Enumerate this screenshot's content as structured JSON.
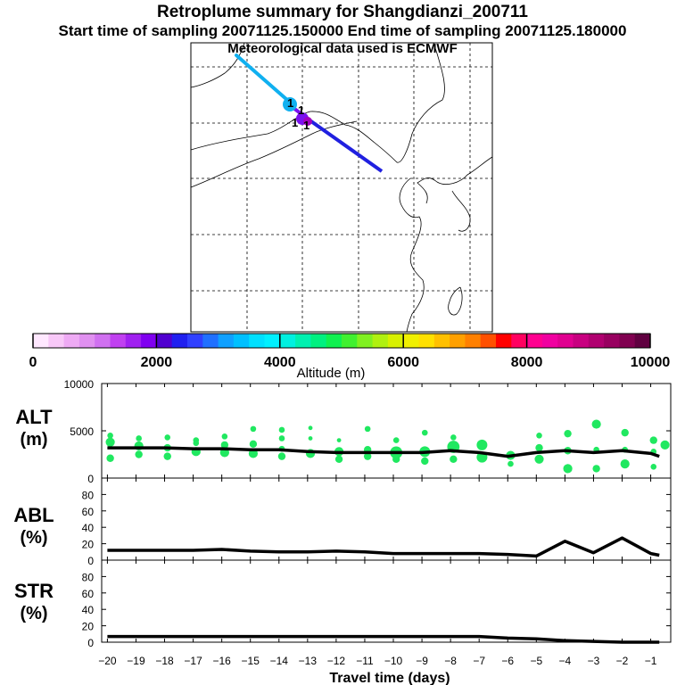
{
  "header": {
    "title": "Retroplume summary for Shangdianzi_200711",
    "subtitle": "Start time of sampling 20071125.150000     End time of sampling 20071125.180000",
    "met": "Meteorological data used is ECMWF"
  },
  "map": {
    "markers": [
      "1",
      "1",
      "1",
      "1"
    ]
  },
  "colorbar": {
    "ticks": [
      "0",
      "2000",
      "4000",
      "6000",
      "8000",
      "10000"
    ],
    "label": "Altitude (m)",
    "colors": [
      "#ffe8ff",
      "#f8c8f8",
      "#eeaaf4",
      "#e090f0",
      "#d070f0",
      "#c040f0",
      "#a020f0",
      "#8000f0",
      "#5000d0",
      "#2020f0",
      "#3040ff",
      "#2070ff",
      "#10a0ff",
      "#00c0ff",
      "#00e0ff",
      "#00f0ff",
      "#00f0e0",
      "#00f0b0",
      "#00f080",
      "#10f050",
      "#40f030",
      "#80f020",
      "#b0f010",
      "#d8f000",
      "#f0f000",
      "#ffe000",
      "#ffc000",
      "#ffa000",
      "#ff8000",
      "#ff5000",
      "#ff0000",
      "#ff0060",
      "#ff0090",
      "#f000a0",
      "#e00090",
      "#c80080",
      "#b00070",
      "#980060",
      "#800050",
      "#600040"
    ],
    "range": [
      0,
      10000
    ]
  },
  "chart_data": [
    {
      "type": "line",
      "name": "ALT",
      "ylabel": "ALT (m)",
      "ylim": [
        0,
        10000
      ],
      "yticks": [
        "0",
        "5000",
        "10000"
      ],
      "ytick_values": [
        0,
        5000,
        10000
      ],
      "x": [
        -20,
        -19,
        -18,
        -17,
        -16,
        -15,
        -14,
        -13,
        -12,
        -11,
        -10,
        -9,
        -8,
        -7,
        -6,
        -5,
        -4,
        -3,
        -2,
        -1,
        -0.7
      ],
      "values": [
        3200,
        3200,
        3200,
        3100,
        3100,
        3000,
        3000,
        2800,
        2700,
        2700,
        2700,
        2700,
        2900,
        2700,
        2300,
        2700,
        2900,
        2700,
        2900,
        2600,
        2300
      ],
      "spread_points": [
        {
          "x": -19.9,
          "y": 3800,
          "s": 4
        },
        {
          "x": -19.9,
          "y": 2100,
          "s": 3
        },
        {
          "x": -19.9,
          "y": 4500,
          "s": 2
        },
        {
          "x": -18.9,
          "y": 3400,
          "s": 4
        },
        {
          "x": -18.9,
          "y": 2500,
          "s": 3
        },
        {
          "x": -18.9,
          "y": 4200,
          "s": 2
        },
        {
          "x": -17.9,
          "y": 3200,
          "s": 3
        },
        {
          "x": -17.9,
          "y": 2300,
          "s": 3
        },
        {
          "x": -17.9,
          "y": 4300,
          "s": 2
        },
        {
          "x": -16.9,
          "y": 2800,
          "s": 4
        },
        {
          "x": -16.9,
          "y": 3700,
          "s": 2
        },
        {
          "x": -16.9,
          "y": 4000,
          "s": 2
        },
        {
          "x": -15.9,
          "y": 2700,
          "s": 4
        },
        {
          "x": -15.9,
          "y": 3500,
          "s": 3
        },
        {
          "x": -15.9,
          "y": 4400,
          "s": 2
        },
        {
          "x": -14.9,
          "y": 2600,
          "s": 4
        },
        {
          "x": -14.9,
          "y": 3600,
          "s": 3
        },
        {
          "x": -14.9,
          "y": 5200,
          "s": 2
        },
        {
          "x": -13.9,
          "y": 2300,
          "s": 3
        },
        {
          "x": -13.9,
          "y": 3100,
          "s": 2
        },
        {
          "x": -13.9,
          "y": 4200,
          "s": 2
        },
        {
          "x": -13.9,
          "y": 5100,
          "s": 2
        },
        {
          "x": -12.9,
          "y": 2600,
          "s": 4
        },
        {
          "x": -12.9,
          "y": 4200,
          "s": 1
        },
        {
          "x": -12.9,
          "y": 5300,
          "s": 1
        },
        {
          "x": -11.9,
          "y": 2800,
          "s": 4
        },
        {
          "x": -11.9,
          "y": 2000,
          "s": 3
        },
        {
          "x": -11.9,
          "y": 4000,
          "s": 1
        },
        {
          "x": -10.9,
          "y": 3000,
          "s": 3
        },
        {
          "x": -10.9,
          "y": 2300,
          "s": 3
        },
        {
          "x": -10.9,
          "y": 5200,
          "s": 2
        },
        {
          "x": -9.9,
          "y": 2700,
          "s": 6
        },
        {
          "x": -9.9,
          "y": 2000,
          "s": 3
        },
        {
          "x": -9.9,
          "y": 4000,
          "s": 2
        },
        {
          "x": -8.9,
          "y": 2800,
          "s": 5
        },
        {
          "x": -8.9,
          "y": 1800,
          "s": 3
        },
        {
          "x": -8.9,
          "y": 4800,
          "s": 2
        },
        {
          "x": -7.9,
          "y": 3300,
          "s": 6
        },
        {
          "x": -7.9,
          "y": 2000,
          "s": 3
        },
        {
          "x": -7.9,
          "y": 4300,
          "s": 2
        },
        {
          "x": -6.9,
          "y": 3500,
          "s": 5
        },
        {
          "x": -6.9,
          "y": 2200,
          "s": 5
        },
        {
          "x": -5.9,
          "y": 2400,
          "s": 4
        },
        {
          "x": -5.9,
          "y": 1500,
          "s": 2
        },
        {
          "x": -4.9,
          "y": 2000,
          "s": 4
        },
        {
          "x": -4.9,
          "y": 3200,
          "s": 3
        },
        {
          "x": -4.9,
          "y": 4500,
          "s": 2
        },
        {
          "x": -3.9,
          "y": 1000,
          "s": 4
        },
        {
          "x": -3.9,
          "y": 2900,
          "s": 3
        },
        {
          "x": -3.9,
          "y": 4700,
          "s": 3
        },
        {
          "x": -2.9,
          "y": 5700,
          "s": 4
        },
        {
          "x": -2.9,
          "y": 1000,
          "s": 3
        },
        {
          "x": -2.9,
          "y": 3000,
          "s": 2
        },
        {
          "x": -1.9,
          "y": 1500,
          "s": 4
        },
        {
          "x": -1.9,
          "y": 4800,
          "s": 3
        },
        {
          "x": -1.9,
          "y": 3000,
          "s": 2
        },
        {
          "x": -0.9,
          "y": 4000,
          "s": 3
        },
        {
          "x": -0.9,
          "y": 2800,
          "s": 2
        },
        {
          "x": -0.9,
          "y": 1200,
          "s": 2
        },
        {
          "x": -0.5,
          "y": 3500,
          "s": 4
        }
      ]
    },
    {
      "type": "line",
      "name": "ABL",
      "ylabel": "ABL (%)",
      "ylim": [
        0,
        100
      ],
      "yticks": [
        "0",
        "20",
        "40",
        "60",
        "80"
      ],
      "ytick_values": [
        0,
        20,
        40,
        60,
        80
      ],
      "x": [
        -20,
        -19,
        -18,
        -17,
        -16,
        -15,
        -14,
        -13,
        -12,
        -11,
        -10,
        -9,
        -8,
        -7,
        -6,
        -5,
        -4,
        -3,
        -2,
        -1,
        -0.7
      ],
      "values": [
        12,
        12,
        12,
        12,
        13,
        11,
        10,
        10,
        11,
        10,
        8,
        8,
        8,
        8,
        7,
        5,
        23,
        9,
        27,
        8,
        6
      ]
    },
    {
      "type": "line",
      "name": "STR",
      "ylabel": "STR (%)",
      "ylim": [
        0,
        100
      ],
      "yticks": [
        "0",
        "20",
        "40",
        "60",
        "80"
      ],
      "ytick_values": [
        0,
        20,
        40,
        60,
        80
      ],
      "xlabel": "Travel time (days)",
      "xticks": [
        "−20",
        "−19",
        "−18",
        "−17",
        "−16",
        "−15",
        "−14",
        "−13",
        "−12",
        "−11",
        "−10",
        "−9",
        "−8",
        "−7",
        "−6",
        "−5",
        "−4",
        "−3",
        "−2",
        "−1"
      ],
      "xtick_values": [
        -20,
        -19,
        -18,
        -17,
        -16,
        -15,
        -14,
        -13,
        -12,
        -11,
        -10,
        -9,
        -8,
        -7,
        -6,
        -5,
        -4,
        -3,
        -2,
        -1
      ],
      "x": [
        -20,
        -19,
        -18,
        -17,
        -16,
        -15,
        -14,
        -13,
        -12,
        -11,
        -10,
        -9,
        -8,
        -7,
        -6,
        -5,
        -4,
        -3,
        -2,
        -1,
        -0.7
      ],
      "values": [
        7,
        7,
        7,
        7,
        7,
        7,
        7,
        7,
        7,
        7,
        7,
        7,
        7,
        7,
        5,
        4,
        2,
        1,
        0,
        0,
        0
      ]
    }
  ]
}
